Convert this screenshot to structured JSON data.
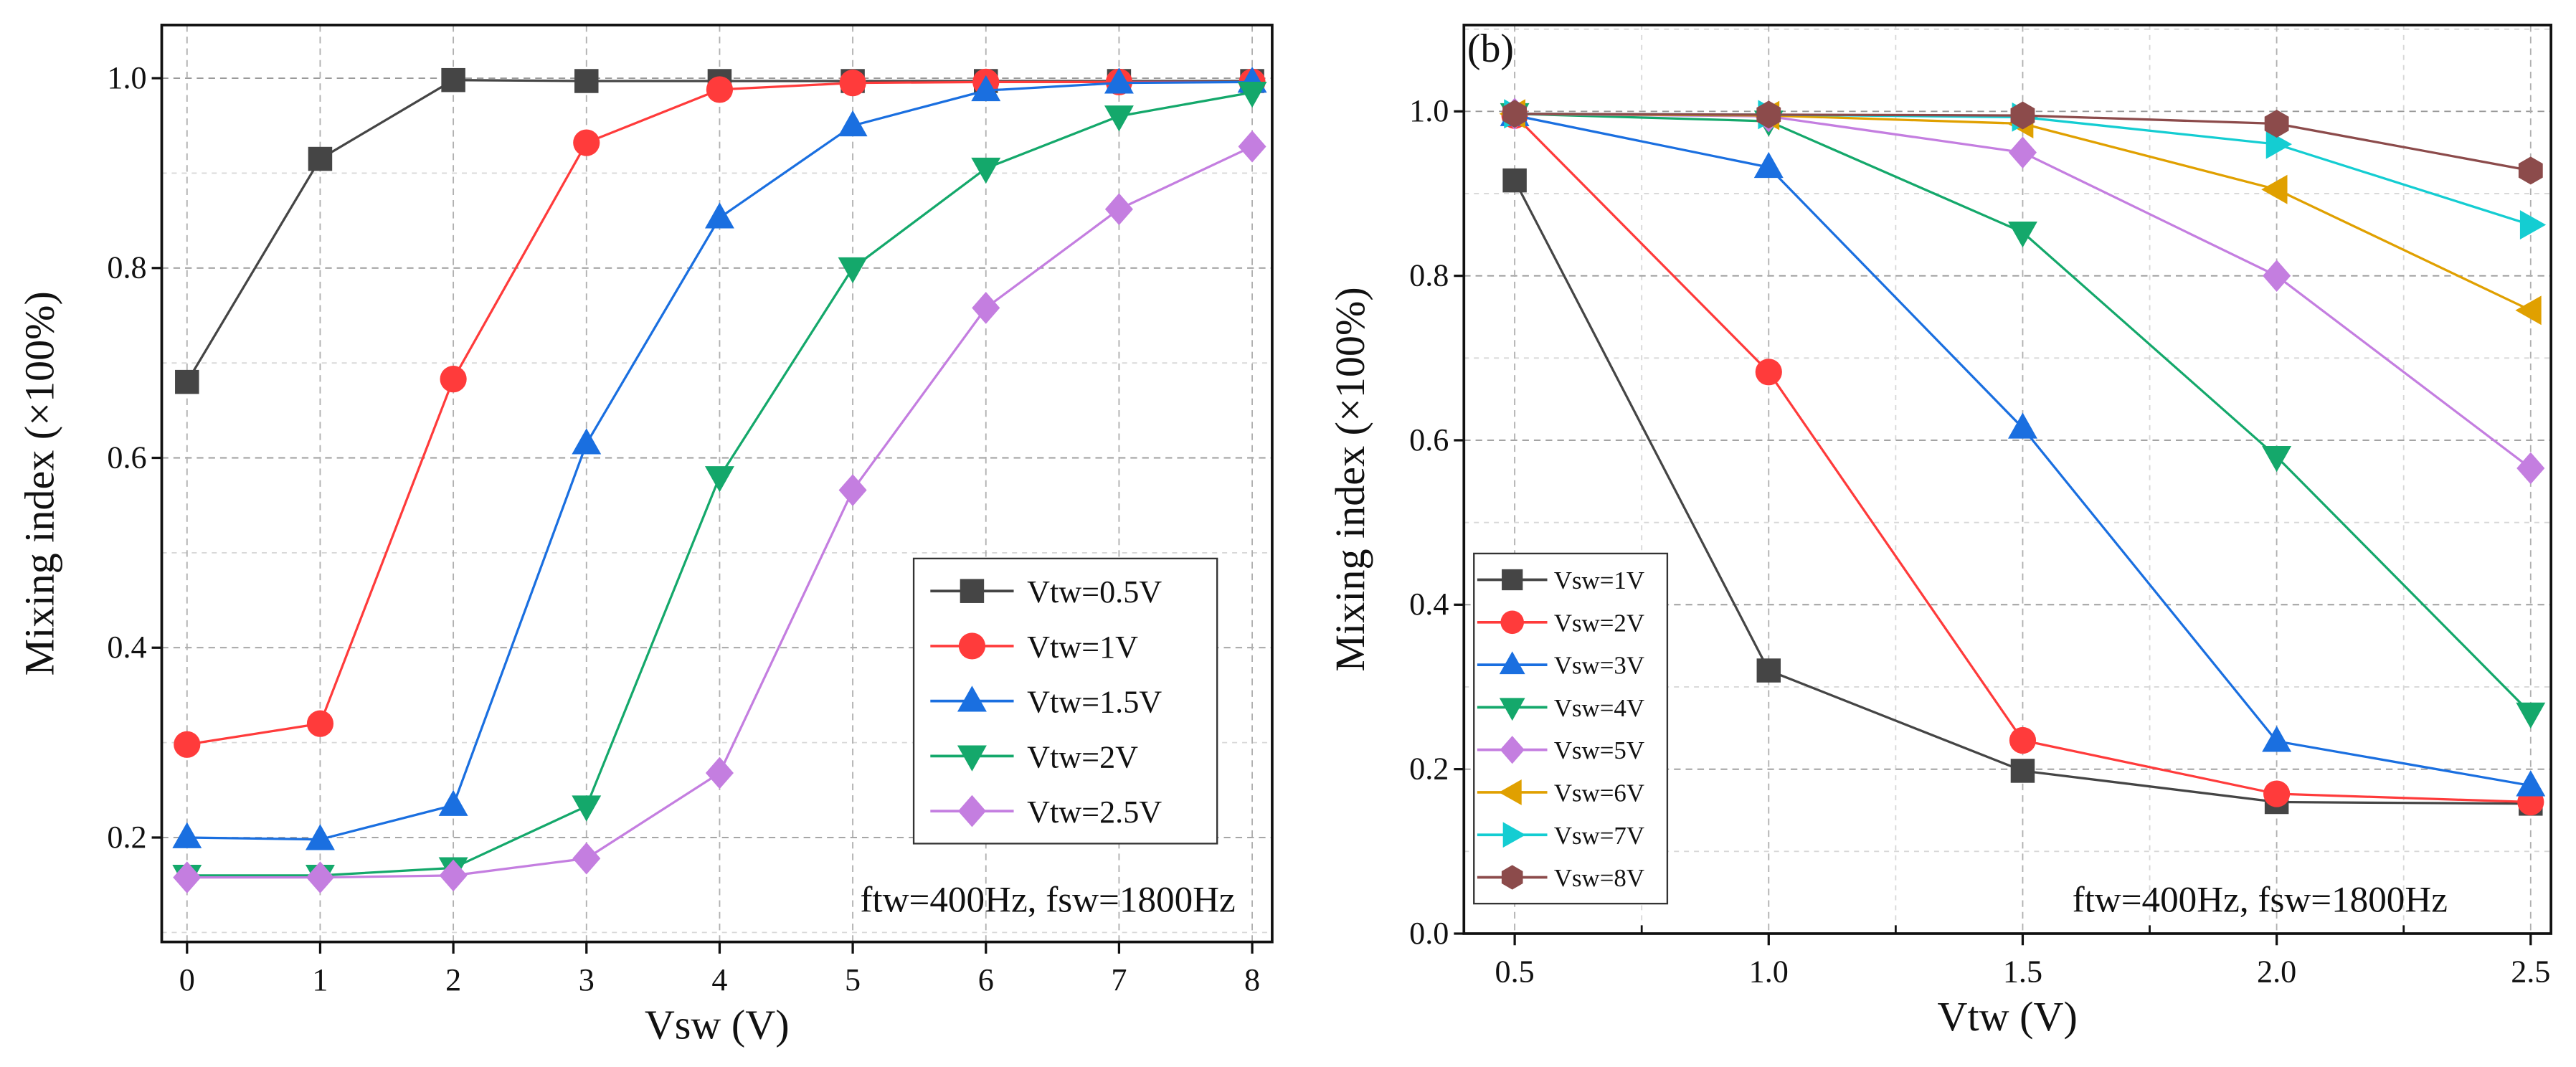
{
  "chart_data": [
    {
      "type": "line",
      "panel_label": "",
      "title": "",
      "xlabel": "Vsw (V)",
      "ylabel": "Mixing index (×100%)",
      "xlim": [
        -0.19,
        8.15
      ],
      "ylim": [
        0.09,
        1.056
      ],
      "xticks": [
        0,
        1,
        2,
        3,
        4,
        5,
        6,
        7,
        8
      ],
      "xtick_labels": [
        "0",
        "1",
        "2",
        "3",
        "4",
        "5",
        "6",
        "7",
        "8"
      ],
      "yticks": [
        0.2,
        0.4,
        0.6,
        0.8,
        1.0
      ],
      "ytick_labels": [
        "0.2",
        "0.4",
        "0.6",
        "0.8",
        "1.0"
      ],
      "grid": true,
      "legend_position": "lower-right",
      "annotation": "ftw=400Hz, fsw=1800Hz",
      "x": [
        0,
        1,
        2,
        3,
        4,
        5,
        6,
        7,
        8
      ],
      "series": [
        {
          "name": "Vtw=0.5V",
          "color": "#454545",
          "marker": "square",
          "values": [
            0.68,
            0.915,
            0.998,
            0.997,
            0.997,
            0.997,
            0.997,
            0.997,
            0.997
          ]
        },
        {
          "name": "Vtw=1V",
          "color": "#ff3b3b",
          "marker": "circle",
          "values": [
            0.298,
            0.32,
            0.683,
            0.932,
            0.988,
            0.995,
            0.996,
            0.996,
            0.996
          ]
        },
        {
          "name": "Vtw=1.5V",
          "color": "#1a6fe0",
          "marker": "triangle-up",
          "values": [
            0.2,
            0.198,
            0.234,
            0.615,
            0.853,
            0.95,
            0.987,
            0.995,
            0.996
          ]
        },
        {
          "name": "Vtw=2V",
          "color": "#14a86b",
          "marker": "triangle-down",
          "values": [
            0.16,
            0.16,
            0.168,
            0.233,
            0.58,
            0.8,
            0.905,
            0.96,
            0.985
          ]
        },
        {
          "name": "Vtw=2.5V",
          "color": "#c47ee0",
          "marker": "diamond",
          "values": [
            0.158,
            0.158,
            0.16,
            0.178,
            0.268,
            0.566,
            0.758,
            0.862,
            0.928
          ]
        }
      ]
    },
    {
      "type": "line",
      "panel_label": "(b)",
      "title": "",
      "xlabel": "Vtw (V)",
      "ylabel": "Mixing index (×100%)",
      "xlim": [
        0.4,
        2.54
      ],
      "ylim": [
        0.0,
        1.105
      ],
      "xticks": [
        0.5,
        1.0,
        1.5,
        2.0,
        2.5
      ],
      "xtick_labels": [
        "0.5",
        "1.0",
        "1.5",
        "2.0",
        "2.5"
      ],
      "yticks": [
        0.0,
        0.2,
        0.4,
        0.6,
        0.8,
        1.0
      ],
      "ytick_labels": [
        "0.0",
        "0.2",
        "0.4",
        "0.6",
        "0.8",
        "1.0"
      ],
      "grid": true,
      "legend_position": "lower-left",
      "annotation": "ftw=400Hz, fsw=1800Hz",
      "x": [
        0.5,
        1.0,
        1.5,
        2.0,
        2.5
      ],
      "series": [
        {
          "name": "Vsw=1V",
          "color": "#454545",
          "marker": "square",
          "values": [
            0.916,
            0.32,
            0.198,
            0.16,
            0.158
          ]
        },
        {
          "name": "Vsw=2V",
          "color": "#ff3b3b",
          "marker": "circle",
          "values": [
            0.995,
            0.683,
            0.235,
            0.17,
            0.16
          ]
        },
        {
          "name": "Vsw=3V",
          "color": "#1a6fe0",
          "marker": "triangle-up",
          "values": [
            0.995,
            0.932,
            0.615,
            0.234,
            0.18
          ]
        },
        {
          "name": "Vsw=4V",
          "color": "#14a86b",
          "marker": "triangle-down",
          "values": [
            0.997,
            0.988,
            0.853,
            0.58,
            0.268
          ]
        },
        {
          "name": "Vsw=5V",
          "color": "#c47ee0",
          "marker": "diamond",
          "values": [
            0.997,
            0.994,
            0.95,
            0.8,
            0.566
          ]
        },
        {
          "name": "Vsw=6V",
          "color": "#e0a000",
          "marker": "triangle-left",
          "values": [
            0.997,
            0.995,
            0.985,
            0.905,
            0.758
          ]
        },
        {
          "name": "Vsw=7V",
          "color": "#14cdd2",
          "marker": "triangle-right",
          "values": [
            0.997,
            0.996,
            0.993,
            0.96,
            0.862
          ]
        },
        {
          "name": "Vsw=8V",
          "color": "#8c4b4b",
          "marker": "hexagon",
          "values": [
            0.997,
            0.996,
            0.995,
            0.985,
            0.928
          ]
        }
      ]
    }
  ]
}
